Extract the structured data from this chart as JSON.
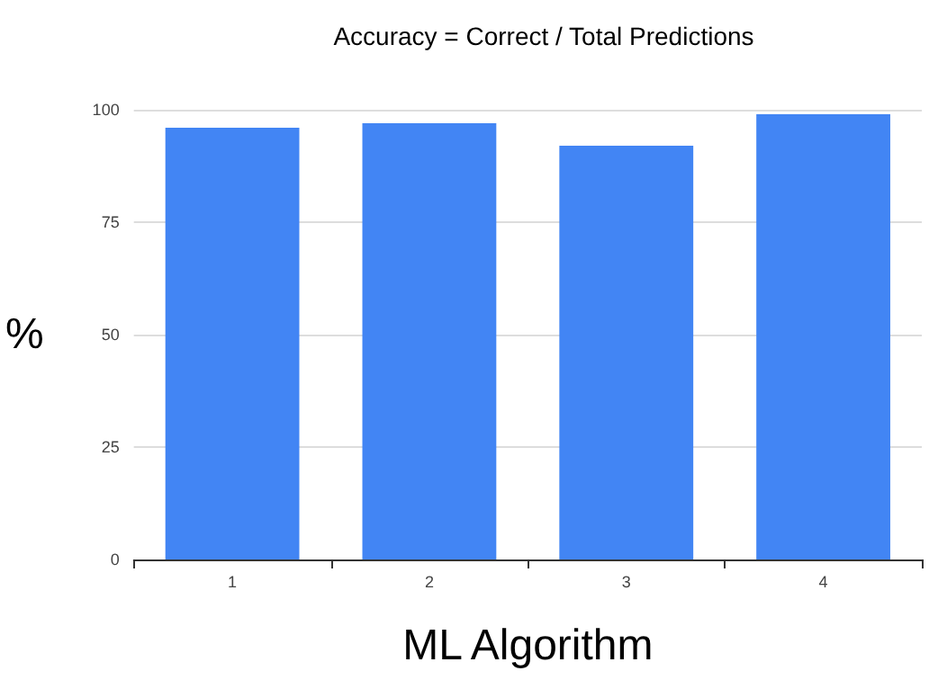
{
  "chart_data": {
    "type": "bar",
    "title": "Accuracy = Correct / Total Predictions",
    "xlabel": "ML Algorithm",
    "ylabel": "%",
    "categories": [
      "1",
      "2",
      "3",
      "4"
    ],
    "values": [
      96,
      97,
      92,
      99
    ],
    "color": "#4285f4",
    "ylim": [
      0,
      100
    ],
    "yticks": [
      0,
      25,
      50,
      75,
      100
    ],
    "grid": "y"
  }
}
